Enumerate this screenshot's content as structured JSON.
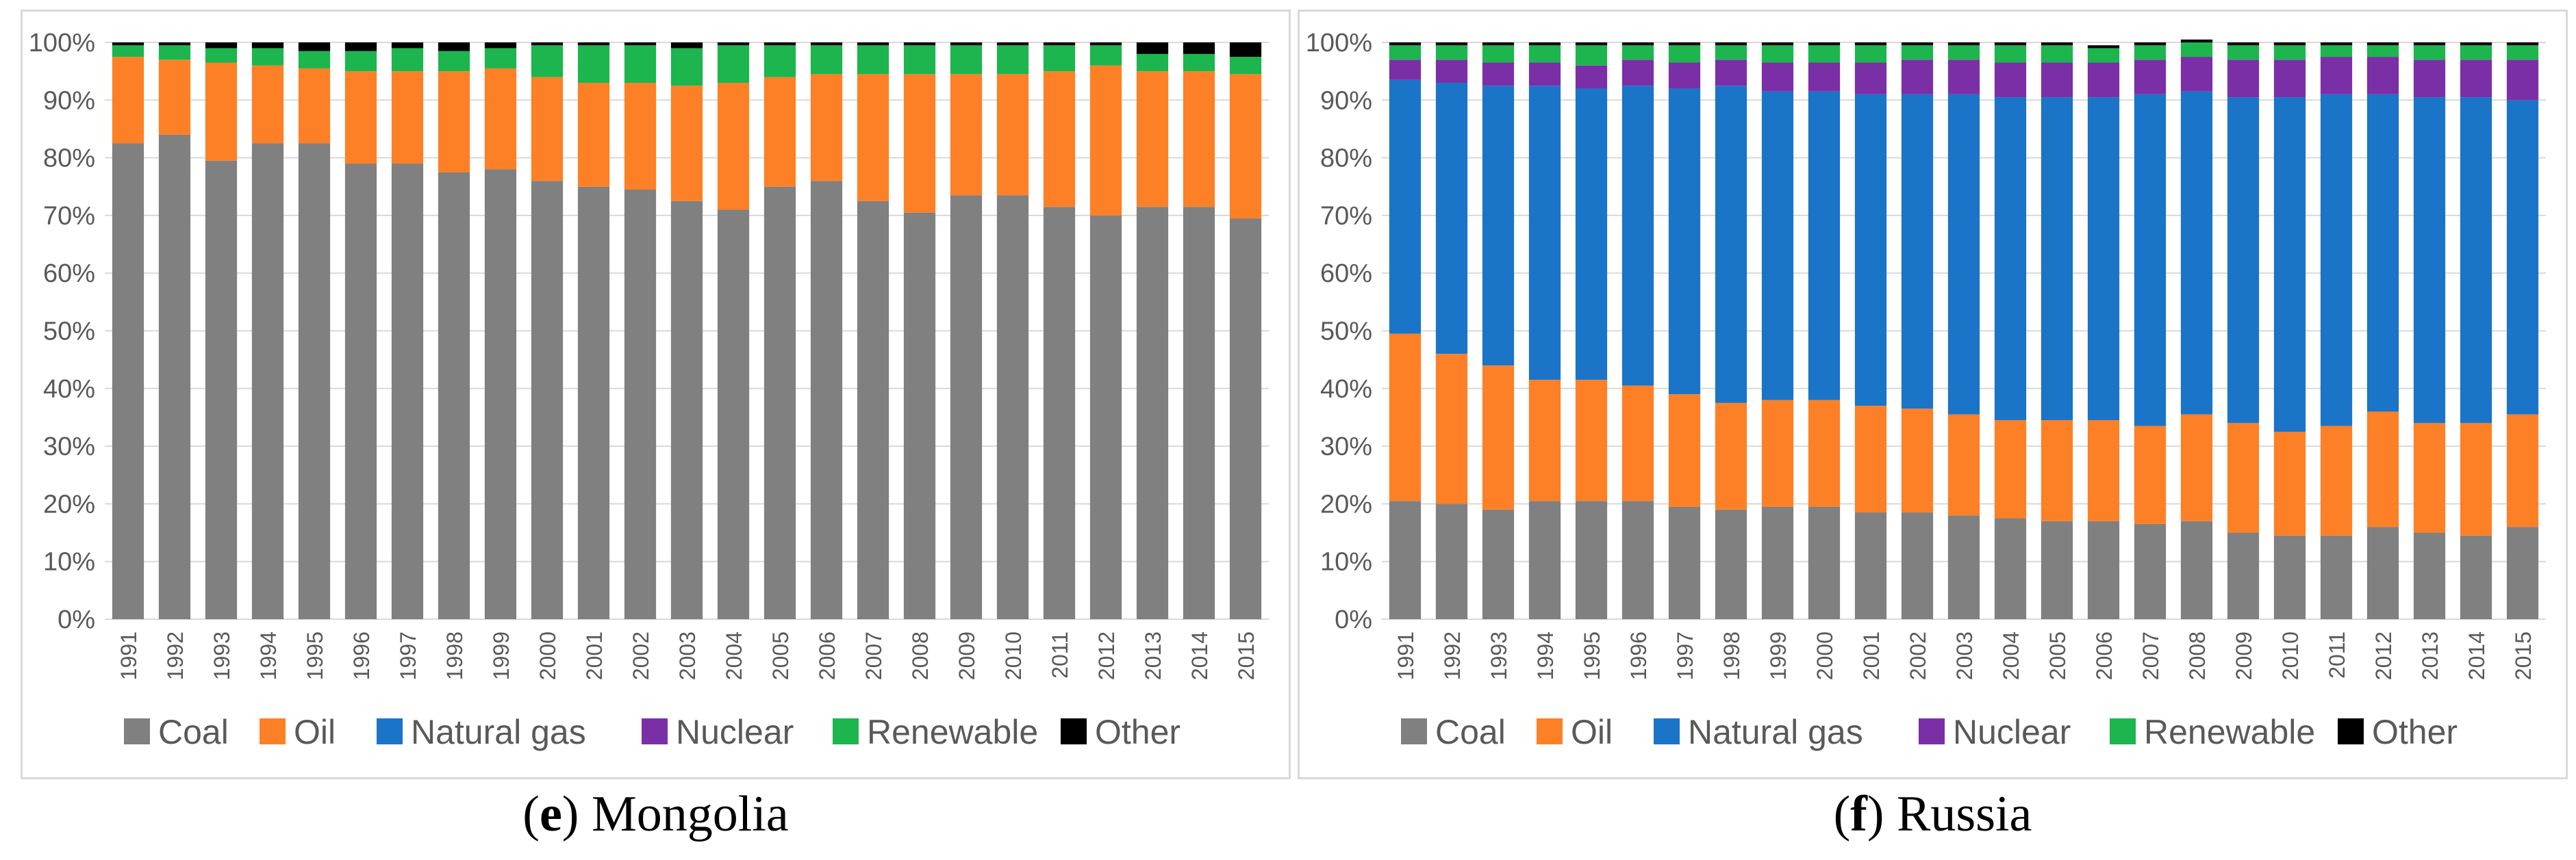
{
  "colors": {
    "Coal": "#808080",
    "Oil": "#fd8026",
    "Natural gas": "#1a74c8",
    "Nuclear": "#7b2fa6",
    "Renewable": "#1cb54e",
    "Other": "#000000",
    "axis_text": "#595959",
    "grid": "#d9d9d9"
  },
  "legend": [
    "Coal",
    "Oil",
    "Natural gas",
    "Nuclear",
    "Renewable",
    "Other"
  ],
  "captions": [
    {
      "letter": "e",
      "paren_open": "(",
      "paren_close": ")",
      "text": " Mongolia"
    },
    {
      "letter": "f",
      "paren_open": "(",
      "paren_close": ")",
      "text": " Russia"
    }
  ],
  "chart_data": [
    {
      "type": "bar",
      "stacked": true,
      "title": "(e) Mongolia",
      "xlabel": "",
      "ylabel": "",
      "ylim": [
        0,
        100
      ],
      "y_ticks": [
        "0%",
        "10%",
        "20%",
        "30%",
        "40%",
        "50%",
        "60%",
        "70%",
        "80%",
        "90%",
        "100%"
      ],
      "legend_position": "bottom",
      "categories": [
        "1991",
        "1992",
        "1993",
        "1994",
        "1995",
        "1996",
        "1997",
        "1998",
        "1999",
        "2000",
        "2001",
        "2002",
        "2003",
        "2004",
        "2005",
        "2006",
        "2007",
        "2008",
        "2009",
        "2010",
        "2011",
        "2012",
        "2013",
        "2014",
        "2015"
      ],
      "series": [
        {
          "name": "Coal",
          "values": [
            82.5,
            84,
            79.5,
            82.5,
            82.5,
            79,
            79,
            77.5,
            78,
            76,
            75,
            74.5,
            72.5,
            71,
            75,
            76,
            72.5,
            70.5,
            73.5,
            73.5,
            71.5,
            70,
            71.5,
            71.5,
            69.5
          ]
        },
        {
          "name": "Oil",
          "values": [
            15,
            13,
            17,
            13.5,
            13,
            16,
            16,
            17.5,
            17.5,
            18,
            18,
            18.5,
            20,
            22,
            19,
            18.5,
            22,
            24,
            21,
            21,
            23.5,
            26,
            23.5,
            23.5,
            25
          ]
        },
        {
          "name": "Natural gas",
          "values": [
            0,
            0,
            0,
            0,
            0,
            0,
            0,
            0,
            0,
            0,
            0,
            0,
            0,
            0,
            0,
            0,
            0,
            0,
            0,
            0,
            0,
            0,
            0,
            0,
            0
          ]
        },
        {
          "name": "Nuclear",
          "values": [
            0,
            0,
            0,
            0,
            0,
            0,
            0,
            0,
            0,
            0,
            0,
            0,
            0,
            0,
            0,
            0,
            0,
            0,
            0,
            0,
            0,
            0,
            0,
            0,
            0
          ]
        },
        {
          "name": "Renewable",
          "values": [
            2,
            2.5,
            2.5,
            3,
            3,
            3.5,
            4,
            3.5,
            3.5,
            5.5,
            6.5,
            6.5,
            6.5,
            6.5,
            5.5,
            5,
            5,
            5,
            5,
            5,
            4.5,
            3.5,
            3,
            3,
            3
          ]
        },
        {
          "name": "Other",
          "values": [
            0.5,
            0.5,
            1,
            1,
            1.5,
            1.5,
            1,
            1.5,
            1,
            0.5,
            0.5,
            0.5,
            1,
            0.5,
            0.5,
            0.5,
            0.5,
            0.5,
            0.5,
            0.5,
            0.5,
            0.5,
            2,
            2,
            2.5
          ]
        }
      ]
    },
    {
      "type": "bar",
      "stacked": true,
      "title": "(f) Russia",
      "xlabel": "",
      "ylabel": "",
      "ylim": [
        0,
        100
      ],
      "y_ticks": [
        "0%",
        "10%",
        "20%",
        "30%",
        "40%",
        "50%",
        "60%",
        "70%",
        "80%",
        "90%",
        "100%"
      ],
      "legend_position": "bottom",
      "categories": [
        "1991",
        "1992",
        "1993",
        "1994",
        "1995",
        "1996",
        "1997",
        "1998",
        "1999",
        "2000",
        "2001",
        "2002",
        "2003",
        "2004",
        "2005",
        "2006",
        "2007",
        "2008",
        "2009",
        "2010",
        "2011",
        "2012",
        "2013",
        "2014",
        "2015"
      ],
      "series": [
        {
          "name": "Coal",
          "values": [
            20.5,
            20,
            19,
            20.5,
            20.5,
            20.5,
            19.5,
            19,
            19.5,
            19.5,
            18.5,
            18.5,
            18,
            17.5,
            17,
            17,
            16.5,
            17,
            15,
            14.5,
            14.5,
            16,
            15,
            14.5,
            16
          ]
        },
        {
          "name": "Oil",
          "values": [
            29,
            26,
            25,
            21,
            21,
            20,
            19.5,
            18.5,
            18.5,
            18.5,
            18.5,
            18,
            17.5,
            17,
            17.5,
            17.5,
            17,
            18.5,
            19,
            18,
            19,
            20,
            19,
            19.5,
            19.5
          ]
        },
        {
          "name": "Natural gas",
          "values": [
            44,
            47,
            48.5,
            51,
            50.5,
            52,
            53,
            55,
            53.5,
            53.5,
            54,
            54.5,
            55.5,
            56,
            56,
            56,
            57.5,
            56,
            56.5,
            58,
            57.5,
            55,
            56.5,
            56.5,
            54.5
          ]
        },
        {
          "name": "Nuclear",
          "values": [
            3.5,
            4,
            4,
            4,
            4,
            4.5,
            4.5,
            4.5,
            5,
            5,
            5.5,
            6,
            6,
            6,
            6,
            6,
            6,
            6,
            6.5,
            6.5,
            6.5,
            6.5,
            6.5,
            6.5,
            7
          ]
        },
        {
          "name": "Renewable",
          "values": [
            2.5,
            2.5,
            3,
            3,
            3.5,
            2.5,
            3,
            2.5,
            3,
            3,
            3,
            2.5,
            2.5,
            3,
            3,
            2.5,
            2.5,
            2.5,
            2.5,
            2.5,
            2,
            2,
            2.5,
            2.5,
            2.5
          ]
        },
        {
          "name": "Other",
          "values": [
            0.5,
            0.5,
            0.5,
            0.5,
            0.5,
            0.5,
            0.5,
            0.5,
            0.5,
            0.5,
            0.5,
            0.5,
            0.5,
            0.5,
            0.5,
            0.5,
            0.5,
            0.5,
            0.5,
            0.5,
            0.5,
            0.5,
            0.5,
            0.5,
            0.5
          ]
        }
      ]
    }
  ]
}
